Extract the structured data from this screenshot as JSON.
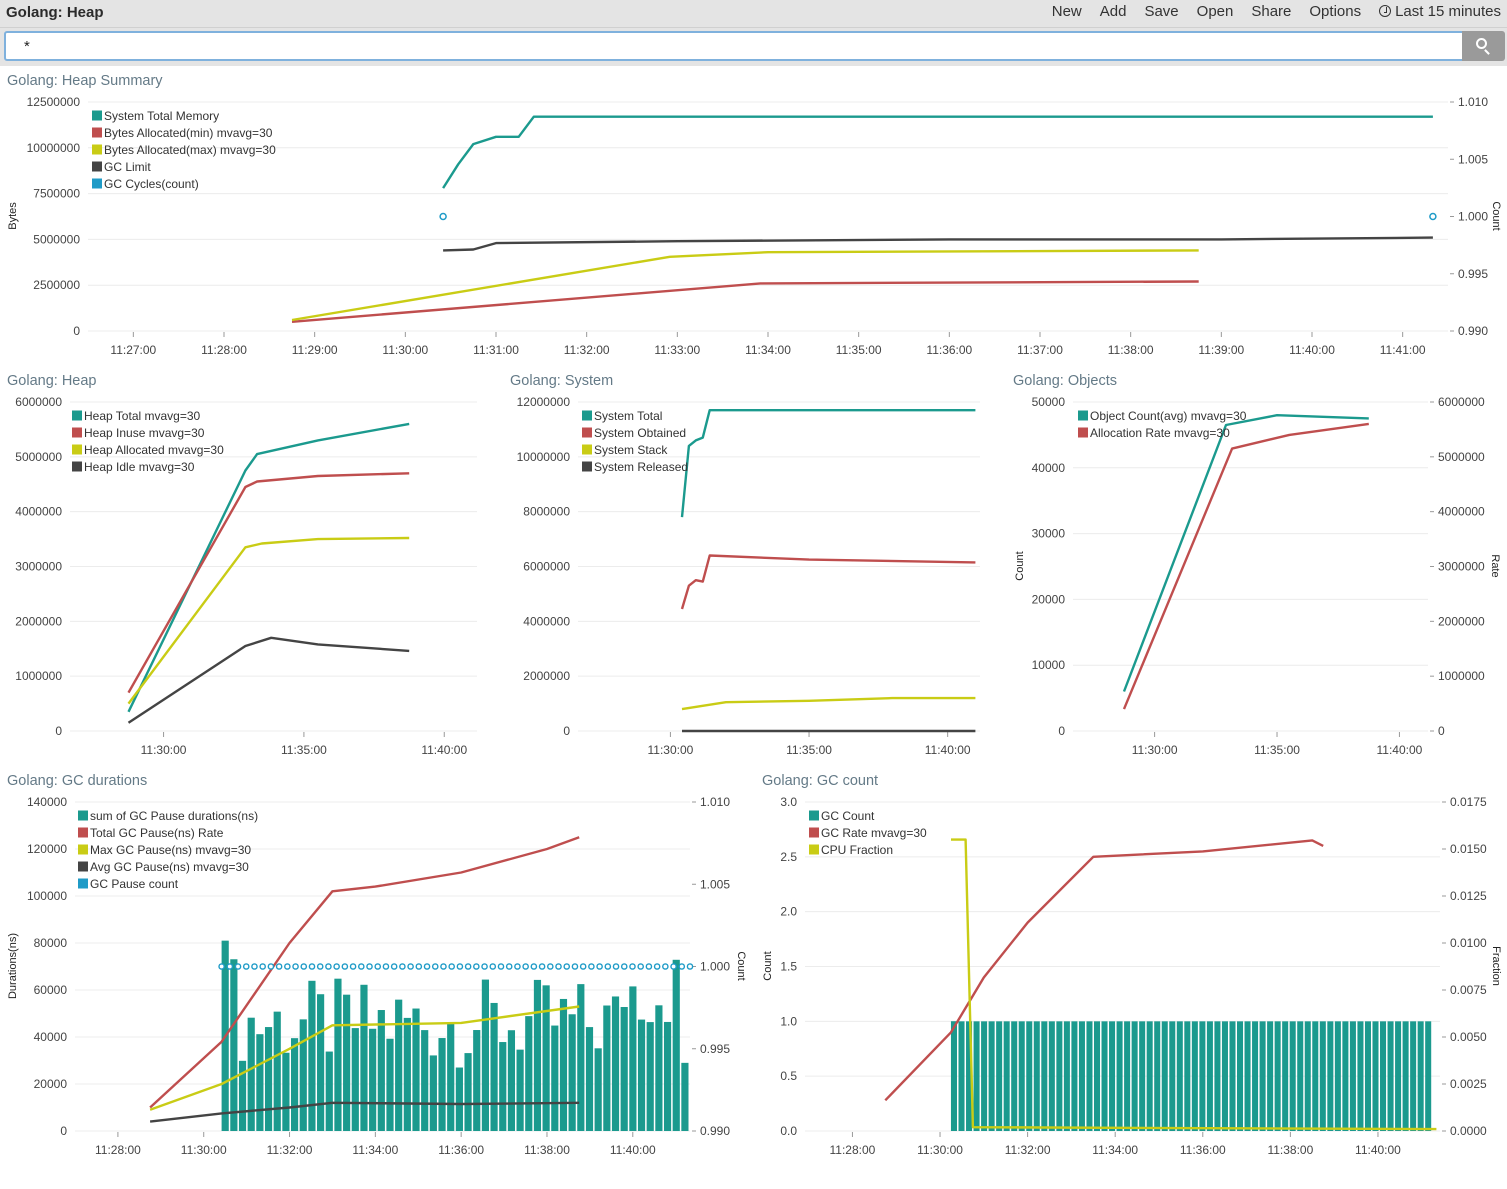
{
  "app_title": "Golang: Heap",
  "menu": {
    "new": "New",
    "add": "Add",
    "save": "Save",
    "open": "Open",
    "share": "Share",
    "options": "Options",
    "time_range": "Last 15 minutes"
  },
  "search": {
    "value": "*",
    "icon": "search-icon"
  },
  "colors": {
    "teal": "#1b9a8e",
    "red": "#bf4e4e",
    "yellow": "#c9cc15",
    "dark": "#444444",
    "blue": "#1f9bc7"
  },
  "panels": {
    "summary": {
      "title": "Golang: Heap Summary",
      "ylabel_left": "Bytes",
      "ylabel_right": "Count",
      "legend": [
        "System Total Memory",
        "Bytes Allocated(min) mvavg=30",
        "Bytes Allocated(max) mvavg=30",
        "GC Limit",
        "GC Cycles(count)"
      ],
      "left_ticks": [
        "12500000",
        "10000000",
        "7500000",
        "5000000",
        "2500000",
        "0"
      ],
      "right_ticks": [
        "1.010",
        "1.005",
        "1.000",
        "0.995",
        "0.990"
      ],
      "x_ticks": [
        "11:27:00",
        "11:28:00",
        "11:29:00",
        "11:30:00",
        "11:31:00",
        "11:32:00",
        "11:33:00",
        "11:34:00",
        "11:35:00",
        "11:36:00",
        "11:37:00",
        "11:38:00",
        "11:39:00",
        "11:40:00",
        "11:41:00"
      ]
    },
    "heap": {
      "title": "Golang: Heap",
      "legend": [
        "Heap Total mvavg=30",
        "Heap Inuse mvavg=30",
        "Heap Allocated mvavg=30",
        "Heap Idle mvavg=30"
      ],
      "left_ticks": [
        "6000000",
        "5000000",
        "4000000",
        "3000000",
        "2000000",
        "1000000",
        "0"
      ],
      "x_ticks": [
        "11:30:00",
        "11:35:00",
        "11:40:00"
      ]
    },
    "system": {
      "title": "Golang: System",
      "legend": [
        "System Total",
        "System Obtained",
        "System Stack",
        "System Released"
      ],
      "left_ticks": [
        "12000000",
        "10000000",
        "8000000",
        "6000000",
        "4000000",
        "2000000",
        "0"
      ],
      "x_ticks": [
        "11:30:00",
        "11:35:00",
        "11:40:00"
      ]
    },
    "objects": {
      "title": "Golang: Objects",
      "ylabel_left": "Count",
      "ylabel_right": "Rate",
      "legend": [
        "Object Count(avg) mvavg=30",
        "Allocation Rate mvavg=30"
      ],
      "left_ticks": [
        "50000",
        "40000",
        "30000",
        "20000",
        "10000",
        "0"
      ],
      "right_ticks": [
        "6000000",
        "5000000",
        "4000000",
        "3000000",
        "2000000",
        "1000000",
        "0"
      ],
      "x_ticks": [
        "11:30:00",
        "11:35:00",
        "11:40:00"
      ]
    },
    "gcdur": {
      "title": "Golang: GC durations",
      "ylabel_left": "Durations(ns)",
      "ylabel_right": "Count",
      "legend": [
        "sum of GC Pause durations(ns)",
        "Total GC Pause(ns) Rate",
        "Max GC Pause(ns) mvavg=30",
        "Avg GC Pause(ns) mvavg=30",
        "GC Pause count"
      ],
      "left_ticks": [
        "140000",
        "120000",
        "100000",
        "80000",
        "60000",
        "40000",
        "20000",
        "0"
      ],
      "right_ticks": [
        "1.010",
        "1.005",
        "1.000",
        "0.995",
        "0.990"
      ],
      "x_ticks": [
        "11:28:00",
        "11:30:00",
        "11:32:00",
        "11:34:00",
        "11:36:00",
        "11:38:00",
        "11:40:00"
      ]
    },
    "gccount": {
      "title": "Golang: GC count",
      "ylabel_left": "Count",
      "ylabel_right": "Fraction",
      "legend": [
        "GC Count",
        "GC Rate mvavg=30",
        "CPU Fraction"
      ],
      "left_ticks": [
        "3.0",
        "2.5",
        "2.0",
        "1.5",
        "1.0",
        "0.5",
        "0.0"
      ],
      "right_ticks": [
        "0.0175",
        "0.0150",
        "0.0125",
        "0.0100",
        "0.0075",
        "0.0050",
        "0.0025",
        "0.0000"
      ],
      "x_ticks": [
        "11:28:00",
        "11:30:00",
        "11:32:00",
        "11:34:00",
        "11:36:00",
        "11:38:00",
        "11:40:00"
      ]
    }
  },
  "chart_data": [
    {
      "type": "line",
      "title": "Golang: Heap Summary",
      "ylabel": "Bytes",
      "ylim": [
        0,
        12500000
      ],
      "y2label": "Count",
      "y2lim": [
        0.99,
        1.01
      ],
      "legend_position": "top-left",
      "grid": true,
      "series": [
        {
          "name": "System Total Memory",
          "x": [
            "11:30:25",
            "11:30:35",
            "11:30:45",
            "11:31:00",
            "11:31:15",
            "11:31:25",
            "11:41:20"
          ],
          "values": [
            7800000,
            9100000,
            10200000,
            10600000,
            10600000,
            11700000,
            11700000
          ]
        },
        {
          "name": "Bytes Allocated(min) mvavg=30",
          "x": [
            "11:28:45",
            "11:33:55",
            "11:38:45"
          ],
          "values": [
            500000,
            2600000,
            2700000
          ]
        },
        {
          "name": "Bytes Allocated(max) mvavg=30",
          "x": [
            "11:28:45",
            "11:32:55",
            "11:34:00",
            "11:38:45"
          ],
          "values": [
            600000,
            4050000,
            4300000,
            4400000
          ]
        },
        {
          "name": "GC Limit",
          "x": [
            "11:30:25",
            "11:30:45",
            "11:31:00",
            "11:33:00",
            "11:36:00",
            "11:39:00",
            "11:41:20"
          ],
          "values": [
            4400000,
            4450000,
            4800000,
            4900000,
            5000000,
            5000000,
            5100000
          ]
        },
        {
          "name": "GC Cycles(count)",
          "x": [
            "11:30:25",
            "11:41:20"
          ],
          "values": [
            1,
            1
          ]
        }
      ]
    },
    {
      "type": "line",
      "title": "Golang: Heap",
      "ylim": [
        0,
        6000000
      ],
      "legend_position": "top-left",
      "grid": true,
      "series": [
        {
          "name": "Heap Total mvavg=30",
          "x": [
            "11:28:45",
            "11:32:55",
            "11:33:20",
            "11:35:30",
            "11:38:45"
          ],
          "values": [
            350000,
            4750000,
            5050000,
            5300000,
            5600000
          ]
        },
        {
          "name": "Heap Inuse mvavg=30",
          "x": [
            "11:28:45",
            "11:32:55",
            "11:33:20",
            "11:35:30",
            "11:38:45"
          ],
          "values": [
            700000,
            4450000,
            4550000,
            4650000,
            4700000
          ]
        },
        {
          "name": "Heap Allocated mvavg=30",
          "x": [
            "11:28:45",
            "11:32:55",
            "11:33:30",
            "11:35:30",
            "11:38:45"
          ],
          "values": [
            500000,
            3350000,
            3420000,
            3500000,
            3520000
          ]
        },
        {
          "name": "Heap Idle mvavg=30",
          "x": [
            "11:28:45",
            "11:32:55",
            "11:33:50",
            "11:35:30",
            "11:38:45"
          ],
          "values": [
            150000,
            1550000,
            1700000,
            1580000,
            1460000
          ]
        }
      ]
    },
    {
      "type": "line",
      "title": "Golang: System",
      "ylim": [
        0,
        12000000
      ],
      "legend_position": "top-left",
      "grid": true,
      "series": [
        {
          "name": "System Total",
          "x": [
            "11:30:25",
            "11:30:40",
            "11:30:55",
            "11:31:10",
            "11:31:25",
            "11:41:00"
          ],
          "values": [
            7800000,
            10400000,
            10600000,
            10700000,
            11700000,
            11700000
          ]
        },
        {
          "name": "System Obtained",
          "x": [
            "11:30:25",
            "11:30:40",
            "11:30:55",
            "11:31:10",
            "11:31:25",
            "11:35:00",
            "11:41:00"
          ],
          "values": [
            4450000,
            5300000,
            5500000,
            5450000,
            6400000,
            6250000,
            6150000
          ]
        },
        {
          "name": "System Stack",
          "x": [
            "11:30:25",
            "11:32:00",
            "11:35:00",
            "11:38:00",
            "11:41:00"
          ],
          "values": [
            800000,
            1050000,
            1100000,
            1200000,
            1200000
          ]
        },
        {
          "name": "System Released",
          "x": [
            "11:30:25",
            "11:41:00"
          ],
          "values": [
            0,
            0
          ]
        }
      ]
    },
    {
      "type": "line",
      "title": "Golang: Objects",
      "ylabel": "Count",
      "ylim": [
        0,
        50000
      ],
      "y2label": "Rate",
      "y2lim": [
        0,
        6000000
      ],
      "legend_position": "top-left",
      "grid": true,
      "series": [
        {
          "name": "Object Count(avg) mvavg=30",
          "x": [
            "11:28:45",
            "11:32:55",
            "11:35:00",
            "11:38:45"
          ],
          "values": [
            6000,
            46500,
            48000,
            47500
          ]
        },
        {
          "name": "Allocation Rate mvavg=30",
          "x": [
            "11:28:45",
            "11:33:10",
            "11:35:30",
            "11:38:45"
          ],
          "values": [
            400000,
            5150000,
            5400000,
            5600000
          ]
        }
      ]
    },
    {
      "type": "bar",
      "title": "Golang: GC durations",
      "ylabel": "Durations(ns)",
      "ylim": [
        0,
        140000
      ],
      "y2label": "Count",
      "y2lim": [
        0.99,
        1.01
      ],
      "legend_position": "top-left",
      "grid": true,
      "series": [
        {
          "name": "sum of GC Pause durations(ns)",
          "x": [
            "11:30:25",
            "11:41:20"
          ],
          "values": [
            81000,
            29000
          ],
          "note_range": [
            27000,
            81000
          ]
        },
        {
          "name": "Total GC Pause(ns) Rate",
          "x": [
            "11:28:45",
            "11:30:25",
            "11:32:00",
            "11:33:00",
            "11:34:00",
            "11:36:00",
            "11:38:00",
            "11:38:45"
          ],
          "values": [
            10000,
            38000,
            80000,
            102000,
            104000,
            110000,
            120000,
            125000
          ]
        },
        {
          "name": "Max GC Pause(ns) mvavg=30",
          "x": [
            "11:28:45",
            "11:30:25",
            "11:32:00",
            "11:33:00",
            "11:36:00",
            "11:38:45"
          ],
          "values": [
            9000,
            20000,
            35000,
            45000,
            46000,
            53000
          ]
        },
        {
          "name": "Avg GC Pause(ns) mvavg=30",
          "x": [
            "11:28:45",
            "11:30:25",
            "11:32:00",
            "11:33:00",
            "11:36:00",
            "11:38:45"
          ],
          "values": [
            4000,
            7500,
            10000,
            12000,
            11500,
            12000
          ]
        },
        {
          "name": "GC Pause count",
          "x": [
            "11:30:25",
            "11:41:20"
          ],
          "values": [
            1,
            1
          ]
        }
      ]
    },
    {
      "type": "bar",
      "title": "Golang: GC count",
      "ylabel": "Count",
      "ylim": [
        0,
        3
      ],
      "y2label": "Fraction",
      "y2lim": [
        0,
        0.0175
      ],
      "legend_position": "top-left",
      "grid": true,
      "series": [
        {
          "name": "GC Count",
          "x": [
            "11:30:15",
            "11:30:40",
            "11:41:15"
          ],
          "values": [
            1,
            1,
            1
          ]
        },
        {
          "name": "GC Rate mvavg=30",
          "x": [
            "11:28:45",
            "11:30:15",
            "11:31:00",
            "11:32:00",
            "11:33:30",
            "11:36:00",
            "11:38:30",
            "11:38:45"
          ],
          "values": [
            0.28,
            0.9,
            1.4,
            1.9,
            2.5,
            2.55,
            2.65,
            2.6
          ]
        },
        {
          "name": "CPU Fraction",
          "x": [
            "11:30:15",
            "11:30:35",
            "11:30:45",
            "11:41:20"
          ],
          "values": [
            0.0155,
            0.0155,
            0.0002,
            0.0001
          ]
        }
      ]
    }
  ]
}
